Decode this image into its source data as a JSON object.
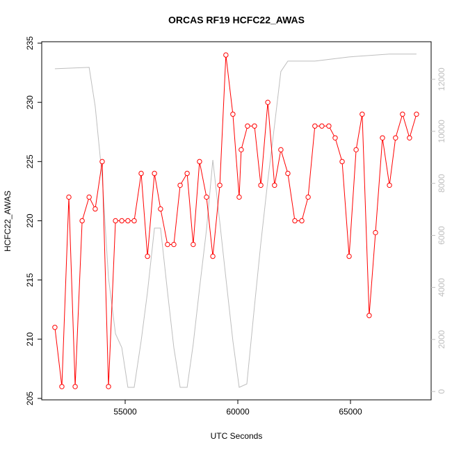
{
  "chart_data": {
    "type": "line",
    "title": "ORCAS RF19 HCFC22_AWAS",
    "xlabel": "UTC Seconds",
    "ylabel": "HCFC22_AWAS",
    "xlim": [
      51296,
      68580
    ],
    "ylim": [
      204.88,
      235.12
    ],
    "y2lim": [
      -321,
      13444
    ],
    "xticks": [
      55000,
      60000,
      65000
    ],
    "yticks": [
      205,
      210,
      215,
      220,
      225,
      230,
      235
    ],
    "y2ticks": [
      0,
      2000,
      4000,
      6000,
      8000,
      10000,
      12000
    ],
    "series": [
      {
        "color": "#ff0000",
        "marker": "circle",
        "x": [
          51880,
          52190,
          52500,
          52780,
          53090,
          53400,
          53670,
          53980,
          54260,
          54570,
          54850,
          55120,
          55400,
          55710,
          55990,
          56300,
          56570,
          56880,
          57160,
          57440,
          57750,
          58020,
          58300,
          58610,
          58890,
          59200,
          59470,
          59780,
          60060,
          60150,
          60430,
          60740,
          61020,
          61330,
          61630,
          61910,
          62220,
          62530,
          62840,
          63120,
          63420,
          63730,
          64040,
          64320,
          64630,
          64940,
          65250,
          65520,
          65830,
          66110,
          66420,
          66730,
          67000,
          67310,
          67620,
          67930
        ],
        "values": [
          211,
          206,
          222,
          206,
          220,
          222,
          221,
          225,
          206,
          220,
          220,
          220,
          220,
          224,
          217,
          224,
          221,
          218,
          218,
          223,
          224,
          218,
          225,
          222,
          217,
          223,
          234,
          229,
          222,
          226,
          228,
          228,
          223,
          230,
          223,
          226,
          224,
          220,
          220,
          222,
          228,
          228,
          228,
          227,
          225,
          217,
          226,
          229,
          212,
          219,
          227,
          223,
          227,
          229,
          227,
          229
        ]
      },
      {
        "color": "#bebebe",
        "axis": "y2",
        "x": [
          51880,
          53400,
          53670,
          53980,
          54260,
          54570,
          54850,
          55120,
          55400,
          55710,
          55990,
          56300,
          56570,
          56880,
          57160,
          57440,
          57750,
          58020,
          58300,
          58610,
          58890,
          59200,
          59470,
          59780,
          60060,
          60400,
          60740,
          61020,
          61330,
          61630,
          61910,
          62220,
          63420,
          64940,
          66730,
          67930
        ],
        "values": [
          12405,
          12460,
          10960,
          8235,
          4360,
          2220,
          1685,
          160,
          160,
          1950,
          3820,
          6280,
          6280,
          3820,
          1685,
          160,
          160,
          1820,
          3960,
          6230,
          8900,
          6500,
          4360,
          1950,
          160,
          290,
          3290,
          5690,
          8100,
          10240,
          12300,
          12700,
          12700,
          12860,
          12970,
          12970
        ]
      }
    ]
  }
}
